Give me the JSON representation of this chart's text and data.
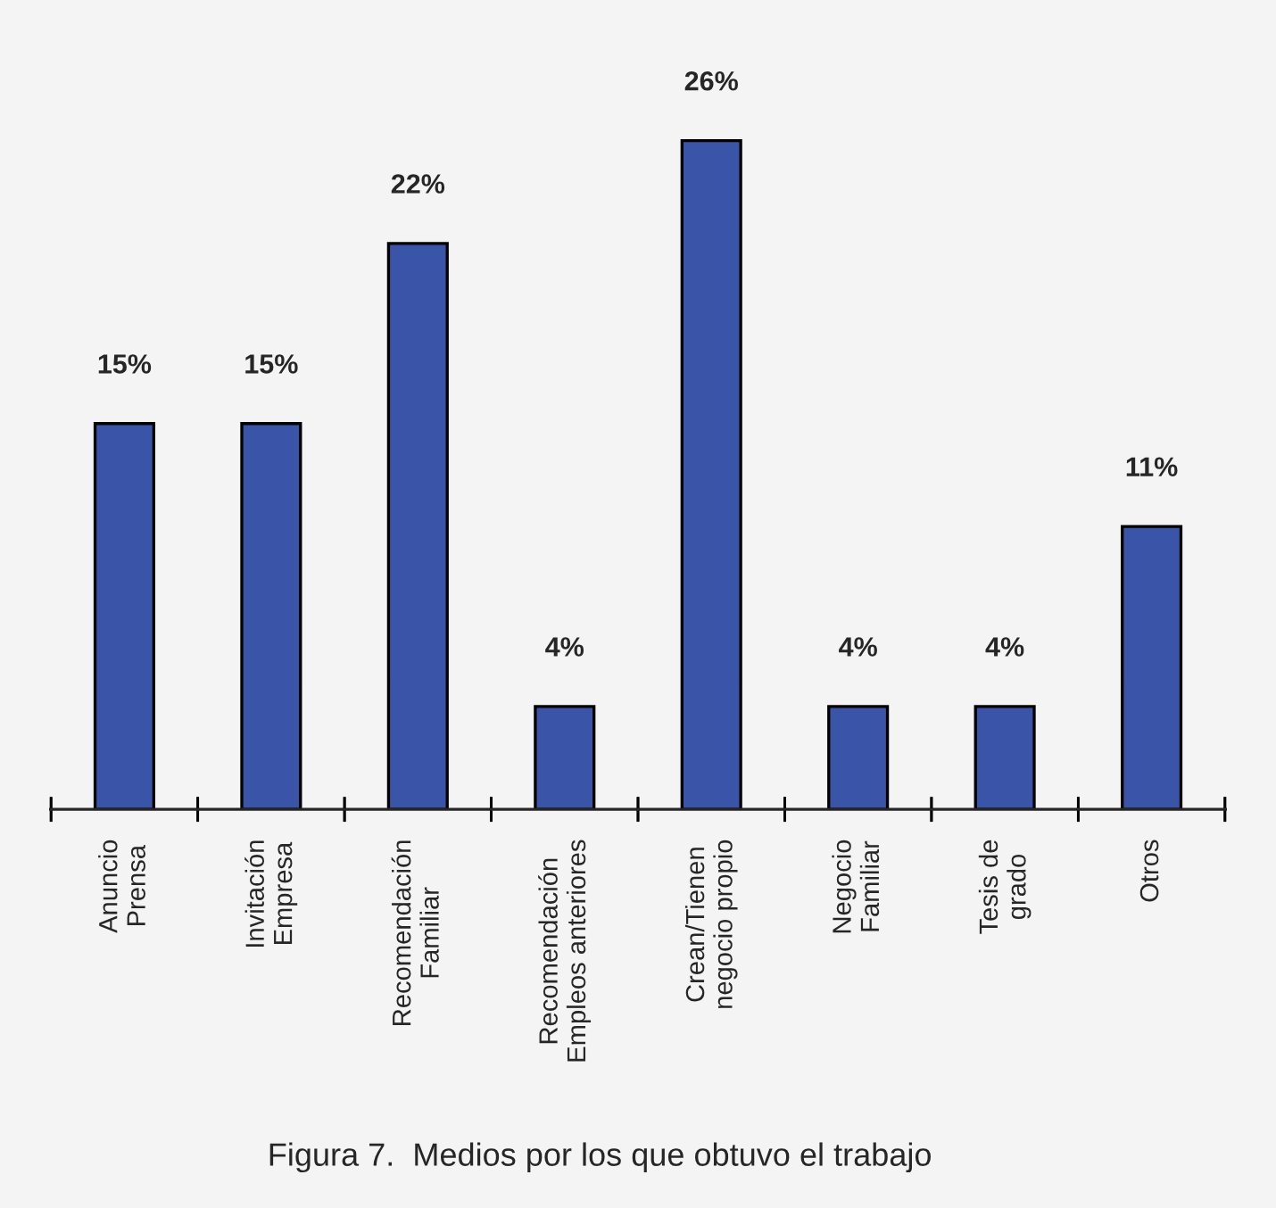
{
  "chart_data": {
    "type": "bar",
    "title": "Figura 7.  Medios por los que obtuvo el trabajo",
    "categories": [
      "Anuncio\nPrensa",
      "Invitación\nEmpresa",
      "Recomendación\nFamiliar",
      "Recomendación\nEmpleos anteriores",
      "Crean/Tienen\nnegocio propio",
      "Negocio\nFamiliar",
      "Tesis de\ngrado",
      "Otros"
    ],
    "values": [
      15,
      15,
      22,
      4,
      26,
      4,
      4,
      11
    ],
    "value_labels": [
      "15%",
      "15%",
      "22%",
      "4%",
      "26%",
      "4%",
      "4%",
      "11%"
    ],
    "color": "#3a55a8",
    "grid": false,
    "legend": false
  }
}
